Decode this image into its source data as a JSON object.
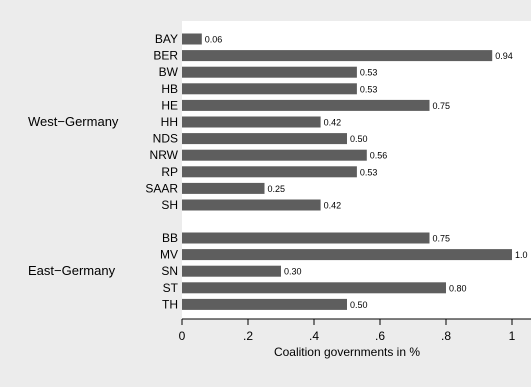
{
  "chart_data": {
    "type": "bar",
    "orientation": "horizontal",
    "xlabel": "Coalition governments in %",
    "xlim": [
      0,
      1
    ],
    "xticks": [
      "0",
      ".2",
      ".4",
      ".6",
      ".8",
      "1"
    ],
    "grid": false,
    "bar_color": "#5e5e5e",
    "background_color": "#ececec",
    "plot_color": "#ffffff",
    "groups": [
      {
        "name": "West−Germany",
        "categories": [
          "BAY",
          "BER",
          "BW",
          "HB",
          "HE",
          "HH",
          "NDS",
          "NRW",
          "RP",
          "SAAR",
          "SH"
        ],
        "values": [
          0.06,
          0.94,
          0.53,
          0.53,
          0.75,
          0.42,
          0.5,
          0.56,
          0.53,
          0.25,
          0.42
        ],
        "labels": [
          "0.06",
          "0.94",
          "0.53",
          "0.53",
          "0.75",
          "0.42",
          "0.50",
          "0.56",
          "0.53",
          "0.25",
          "0.42"
        ]
      },
      {
        "name": "East−Germany",
        "categories": [
          "BB",
          "MV",
          "SN",
          "ST",
          "TH"
        ],
        "values": [
          0.75,
          1.0,
          0.3,
          0.8,
          0.5
        ],
        "labels": [
          "0.75",
          "1.0",
          "0.30",
          "0.80",
          "0.50"
        ]
      }
    ]
  }
}
